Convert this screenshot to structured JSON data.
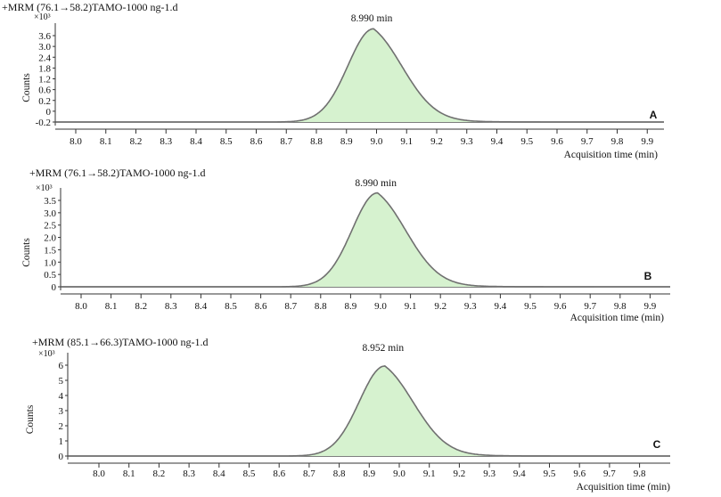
{
  "chart_data": [
    {
      "type": "area",
      "title": "+MRM (76.1→58.2)TAMO-1000 ng-1.d",
      "ylabel": "Counts",
      "xlabel": "Acquisition time (min)",
      "y_multiplier": "×10³",
      "panel_label": "A",
      "peak_annotation": "8.990 min",
      "peak_time": 8.99,
      "peak_height": 3.95,
      "tail": 0.9,
      "ytick_labels": [
        "-0.2",
        "0",
        "0.2",
        "0.6",
        "1.2",
        "1.8",
        "2.4",
        "3.0",
        "3.6"
      ],
      "ylim": [
        -0.35,
        4.1
      ],
      "xtick_labels": [
        "8.0",
        "8.1",
        "8.2",
        "8.3",
        "8.4",
        "8.5",
        "8.6",
        "8.7",
        "8.8",
        "8.9",
        "9.0",
        "9.1",
        "9.2",
        "9.3",
        "9.4",
        "9.5",
        "9.6",
        "9.7",
        "9.8",
        "9.9"
      ],
      "x": [
        8.75,
        8.8,
        8.85,
        8.9,
        8.95,
        8.99,
        9.05,
        9.1,
        9.15,
        9.2,
        9.3,
        9.4,
        9.5,
        9.55
      ],
      "y": [
        -0.2,
        0.0,
        0.9,
        2.4,
        3.7,
        3.95,
        3.5,
        2.5,
        1.6,
        0.9,
        0.25,
        0.05,
        0.0,
        -0.2
      ]
    },
    {
      "type": "area",
      "title": "+MRM (76.1→58.2)TAMO-1000 ng-1.d",
      "ylabel": "Counts",
      "xlabel": "Acquisition time (min)",
      "y_multiplier": "×10³",
      "panel_label": "B",
      "peak_annotation": "8.990 min",
      "peak_time": 8.99,
      "peak_height": 3.7,
      "tail": 0.75,
      "ytick_labels": [
        "0",
        "0.5",
        "1.0",
        "1.5",
        "2.0",
        "2.5",
        "3.0",
        "3.5"
      ],
      "ylim": [
        -0.3,
        4.0
      ],
      "xtick_labels": [
        "8.0",
        "8.1",
        "8.2",
        "8.3",
        "8.4",
        "8.5",
        "8.6",
        "8.7",
        "8.8",
        "8.9",
        "9.0",
        "9.1",
        "9.2",
        "9.3",
        "9.4",
        "9.5",
        "9.6",
        "9.7",
        "9.8",
        "9.9"
      ],
      "x": [
        8.8,
        8.85,
        8.9,
        8.95,
        8.99,
        9.05,
        9.1,
        9.15,
        9.2,
        9.3,
        9.4
      ],
      "y": [
        0.0,
        0.8,
        2.3,
        3.5,
        3.7,
        3.2,
        2.3,
        1.4,
        0.8,
        0.2,
        0.0
      ]
    },
    {
      "type": "area",
      "title": "+MRM (85.1→66.3)TAMO-1000 ng-1.d",
      "ylabel": "Counts",
      "xlabel": "Acquisition time (min)",
      "y_multiplier": "×10³",
      "panel_label": "C",
      "peak_annotation": "8.952 min",
      "peak_time": 8.952,
      "peak_height": 6.2,
      "tail": 0.8,
      "ytick_labels": [
        "0",
        "1",
        "2",
        "3",
        "4",
        "5",
        "6"
      ],
      "ylim": [
        -0.5,
        6.7
      ],
      "xtick_labels": [
        "8.0",
        "8.1",
        "8.2",
        "8.3",
        "8.4",
        "8.5",
        "8.6",
        "8.7",
        "8.8",
        "8.9",
        "9.0",
        "9.1",
        "9.2",
        "9.3",
        "9.4",
        "9.5",
        "9.6",
        "9.7",
        "9.8"
      ],
      "x": [
        8.75,
        8.8,
        8.85,
        8.9,
        8.952,
        9.0,
        9.05,
        9.1,
        9.2,
        9.3,
        9.4
      ],
      "y": [
        0.0,
        1.2,
        3.6,
        5.6,
        6.2,
        5.5,
        3.9,
        2.4,
        0.8,
        0.2,
        0.0
      ]
    }
  ]
}
